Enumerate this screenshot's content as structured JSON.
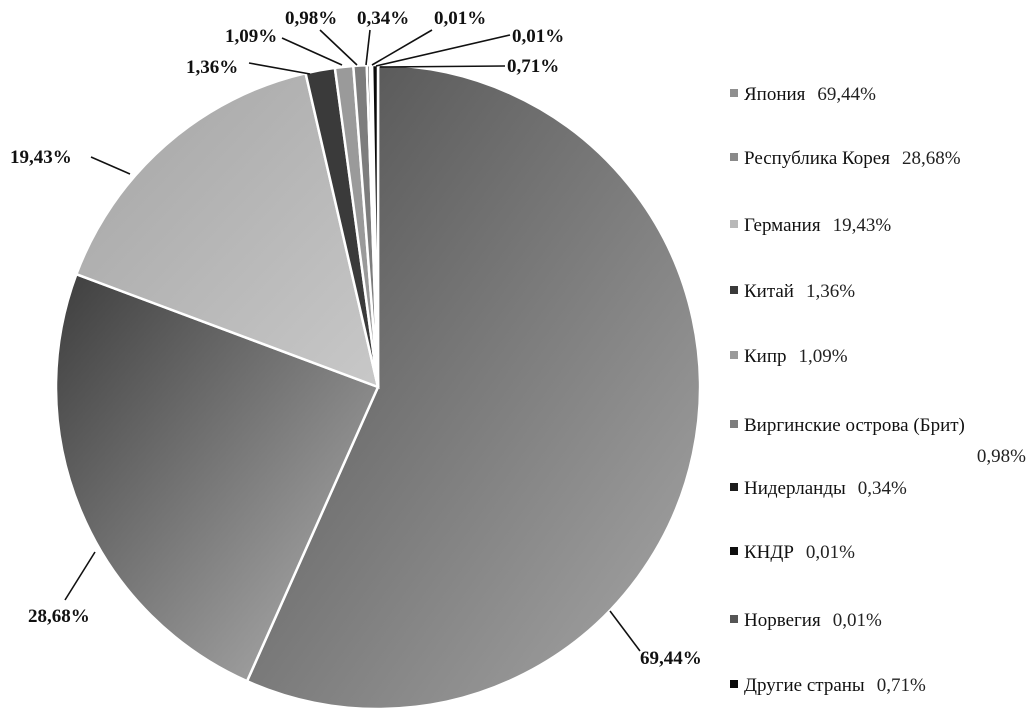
{
  "chart_data": {
    "type": "pie",
    "title": "",
    "categories": [
      "Япония",
      "Республика Корея",
      "Германия",
      "Китай",
      "Кипр",
      "Виргинские острова (Брит)",
      "Нидерланды",
      "КНДР",
      "Норвегия",
      "Другие страны"
    ],
    "values": [
      69.44,
      28.68,
      19.43,
      1.36,
      1.09,
      0.98,
      0.34,
      0.01,
      0.01,
      0.71
    ],
    "value_labels": [
      "69,44%",
      "28,68%",
      "19,43%",
      "1,36%",
      "1,09%",
      "0,98%",
      "0,34%",
      "0,01%",
      "0,01%",
      "0,71%"
    ],
    "legend_position": "right",
    "colors": [
      "#8f8f8f",
      "#8a8a8a",
      "#b8b8b8",
      "#3a3a3a",
      "#9a9a9a",
      "#7d7d7d",
      "#1c1c1c",
      "#0e0e0e",
      "#555555",
      "#0a0a0a"
    ]
  }
}
